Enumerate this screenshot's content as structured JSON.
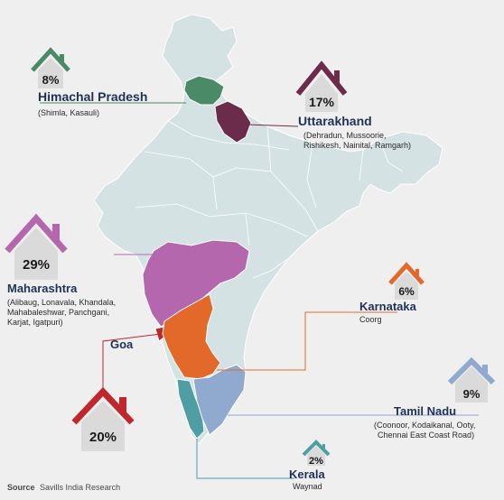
{
  "regions": [
    {
      "id": "himachal",
      "percent": "8%",
      "percent_value": 8,
      "name": "Himachal Pradesh",
      "places": [
        "(Shimla, Kasauli)"
      ],
      "color": "#4a8a67"
    },
    {
      "id": "uttarakhand",
      "percent": "17%",
      "percent_value": 17,
      "name": "Uttarakhand",
      "places": [
        "(Dehradun, Mussoorie,",
        "Rishikesh, Nainital, Ramgarh)"
      ],
      "color": "#6b2c4c"
    },
    {
      "id": "maharashtra",
      "percent": "29%",
      "percent_value": 29,
      "name": "Maharashtra",
      "places": [
        "(Alibaug, Lonavala, Khandala,",
        "Mahabaleshwar, Panchgani,",
        "Karjat, Igatpuri)"
      ],
      "color": "#b567ad"
    },
    {
      "id": "karnataka",
      "percent": "6%",
      "percent_value": 6,
      "name": "Karnataka",
      "places": [
        "Coorg"
      ],
      "color": "#e3692a"
    },
    {
      "id": "goa",
      "percent": "20%",
      "percent_value": 20,
      "name": "Goa",
      "places": [],
      "color": "#c0272d"
    },
    {
      "id": "tamilnadu",
      "percent": "9%",
      "percent_value": 9,
      "name": "Tamil Nadu",
      "places": [
        "(Coonoor, Kodaikanal, Ooty,",
        "Chennai East Coast Road)"
      ],
      "color": "#8fa9cf"
    },
    {
      "id": "kerala",
      "percent": "2%",
      "percent_value": 2,
      "name": "Kerala",
      "places": [
        "Waynad"
      ],
      "color": "#4e9ea4"
    }
  ],
  "source": {
    "label": "Source",
    "text": "Savills India Research"
  }
}
